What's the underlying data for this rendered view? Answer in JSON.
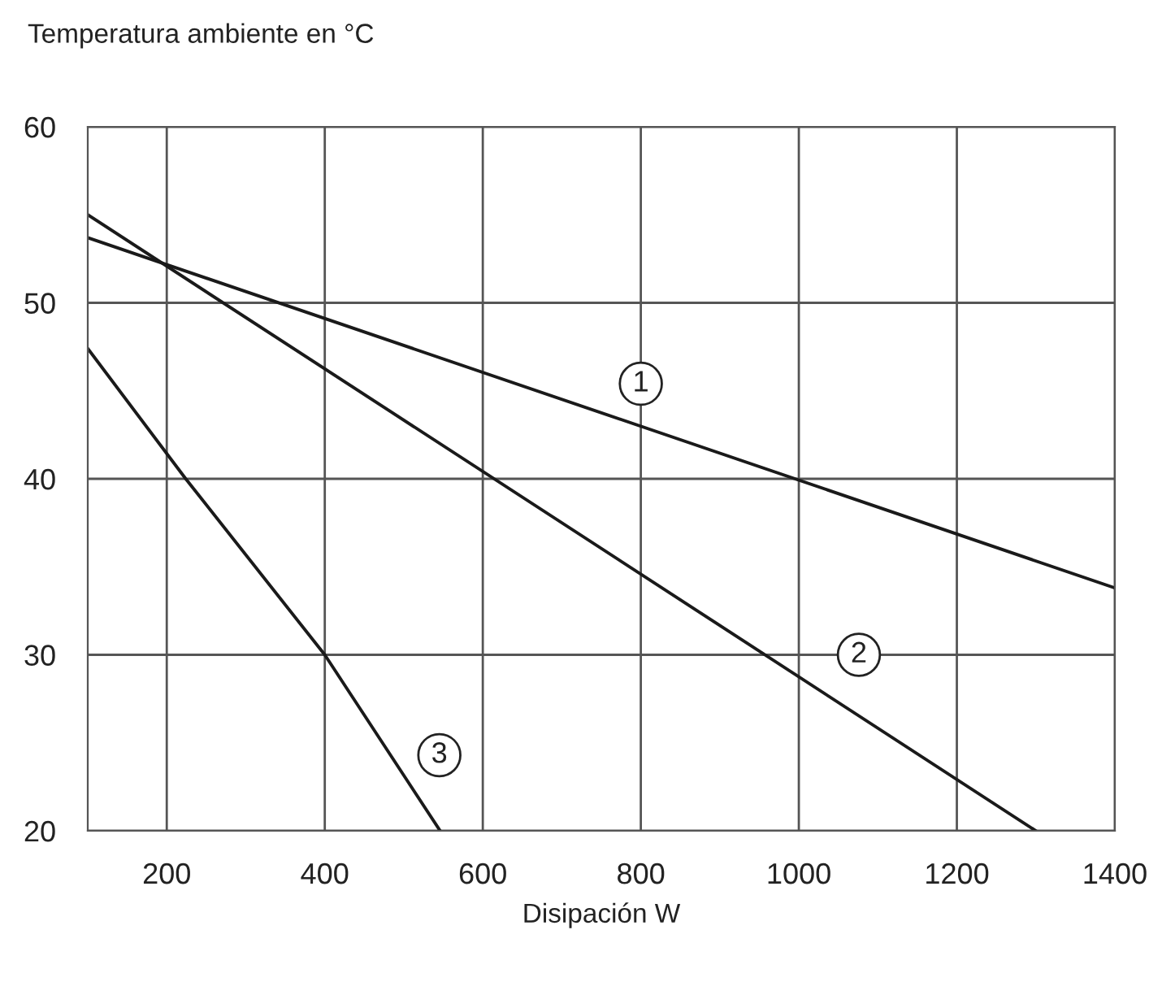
{
  "chart_data": {
    "type": "line",
    "ylabel": "Temperatura ambiente en °C",
    "xlabel": "Disipación W",
    "xlim": [
      100,
      1400
    ],
    "xticks": [
      200,
      400,
      600,
      800,
      1000,
      1200,
      1400
    ],
    "ylim": [
      20,
      60
    ],
    "yticks": [
      20,
      30,
      40,
      50,
      60
    ],
    "grid": true,
    "marker": "none",
    "line_style": "solid",
    "series": [
      {
        "color": "#1a1a1a",
        "x": [
          100,
          1400
        ],
        "values": [
          53.7,
          33.8
        ]
      },
      {
        "color": "#1a1a1a",
        "x": [
          100,
          1300
        ],
        "values": [
          55,
          20
        ]
      },
      {
        "color": "#1a1a1a",
        "x": [
          100,
          224,
          400,
          546
        ],
        "values": [
          47.4,
          40,
          30,
          20
        ]
      }
    ],
    "annotations": [
      {
        "text": "1",
        "x": 800,
        "y": 45.4
      },
      {
        "text": "2",
        "x": 1076,
        "y": 30
      },
      {
        "text": "3",
        "x": 545,
        "y": 24.3
      }
    ]
  }
}
